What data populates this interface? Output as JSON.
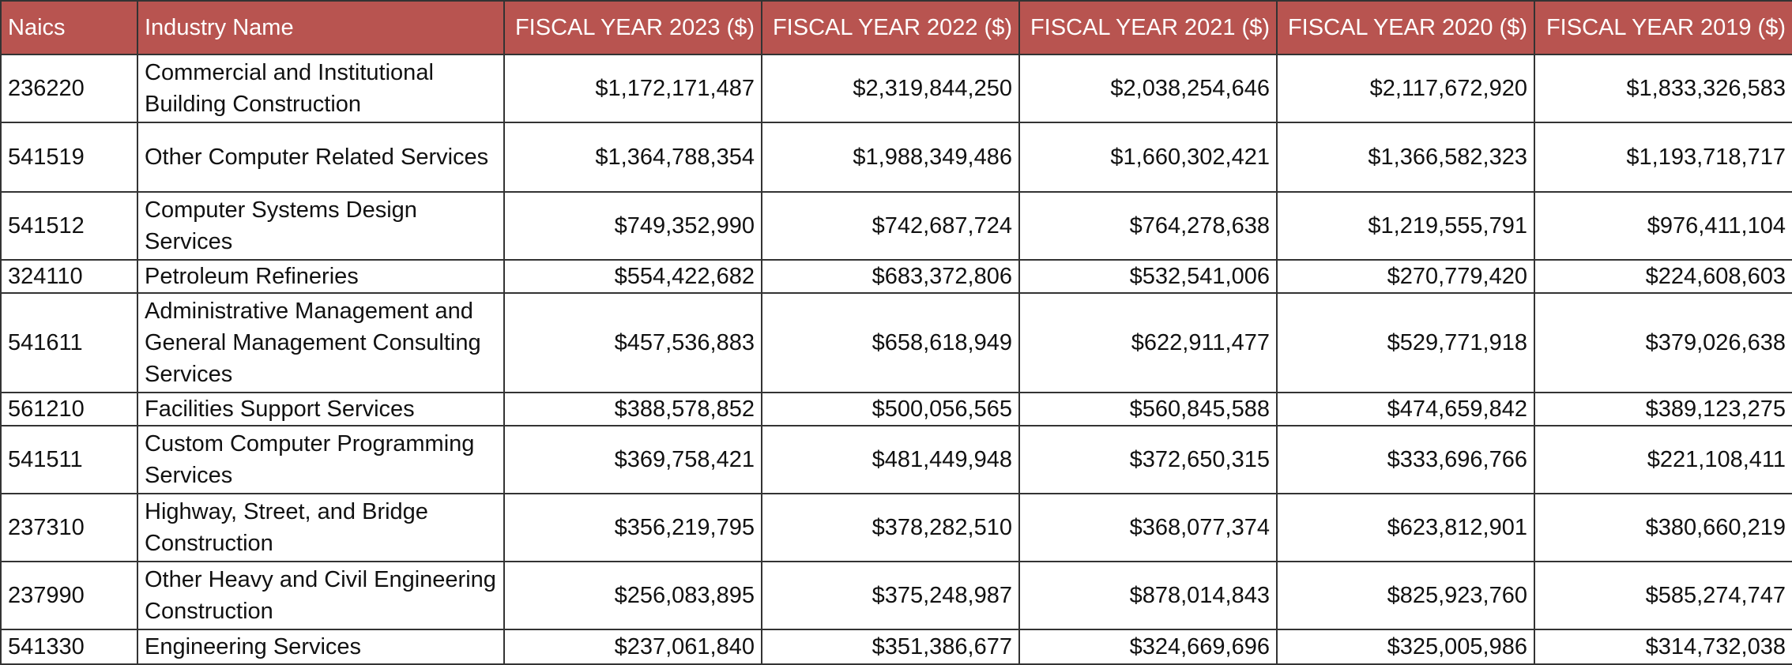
{
  "columns": [
    "Naics",
    "Industry Name",
    "FISCAL YEAR 2023 ($)",
    "FISCAL YEAR 2022 ($)",
    "FISCAL YEAR 2021 ($)",
    "FISCAL YEAR 2020 ($)",
    "FISCAL YEAR 2019 ($)"
  ],
  "header_color": "#b85450",
  "rows": [
    {
      "naics": "236220",
      "name": "Commercial and Institutional Building Construction",
      "fy2023": "$1,172,171,487",
      "fy2022": "$2,319,844,250",
      "fy2021": "$2,038,254,646",
      "fy2020": "$2,117,672,920",
      "fy2019": "$1,833,326,583"
    },
    {
      "naics": "541519",
      "name": "Other Computer Related Services",
      "fy2023": "$1,364,788,354",
      "fy2022": "$1,988,349,486",
      "fy2021": "$1,660,302,421",
      "fy2020": "$1,366,582,323",
      "fy2019": "$1,193,718,717"
    },
    {
      "naics": "541512",
      "name": "Computer Systems Design Services",
      "fy2023": "$749,352,990",
      "fy2022": "$742,687,724",
      "fy2021": "$764,278,638",
      "fy2020": "$1,219,555,791",
      "fy2019": "$976,411,104"
    },
    {
      "naics": "324110",
      "name": "Petroleum Refineries",
      "fy2023": "$554,422,682",
      "fy2022": "$683,372,806",
      "fy2021": "$532,541,006",
      "fy2020": "$270,779,420",
      "fy2019": "$224,608,603"
    },
    {
      "naics": "541611",
      "name": "Administrative Management and General Management Consulting Services",
      "fy2023": "$457,536,883",
      "fy2022": "$658,618,949",
      "fy2021": "$622,911,477",
      "fy2020": "$529,771,918",
      "fy2019": "$379,026,638"
    },
    {
      "naics": "561210",
      "name": "Facilities Support Services",
      "fy2023": "$388,578,852",
      "fy2022": "$500,056,565",
      "fy2021": "$560,845,588",
      "fy2020": "$474,659,842",
      "fy2019": "$389,123,275"
    },
    {
      "naics": "541511",
      "name": "Custom Computer Programming Services",
      "fy2023": "$369,758,421",
      "fy2022": "$481,449,948",
      "fy2021": "$372,650,315",
      "fy2020": "$333,696,766",
      "fy2019": "$221,108,411"
    },
    {
      "naics": "237310",
      "name": "Highway, Street, and Bridge Construction",
      "fy2023": "$356,219,795",
      "fy2022": "$378,282,510",
      "fy2021": "$368,077,374",
      "fy2020": "$623,812,901",
      "fy2019": "$380,660,219"
    },
    {
      "naics": "237990",
      "name": "Other Heavy and Civil Engineering Construction",
      "fy2023": "$256,083,895",
      "fy2022": "$375,248,987",
      "fy2021": "$878,014,843",
      "fy2020": "$825,923,760",
      "fy2019": "$585,274,747"
    },
    {
      "naics": "541330",
      "name": "Engineering Services",
      "fy2023": "$237,061,840",
      "fy2022": "$351,386,677",
      "fy2021": "$324,669,696",
      "fy2020": "$325,005,986",
      "fy2019": "$314,732,038"
    }
  ]
}
